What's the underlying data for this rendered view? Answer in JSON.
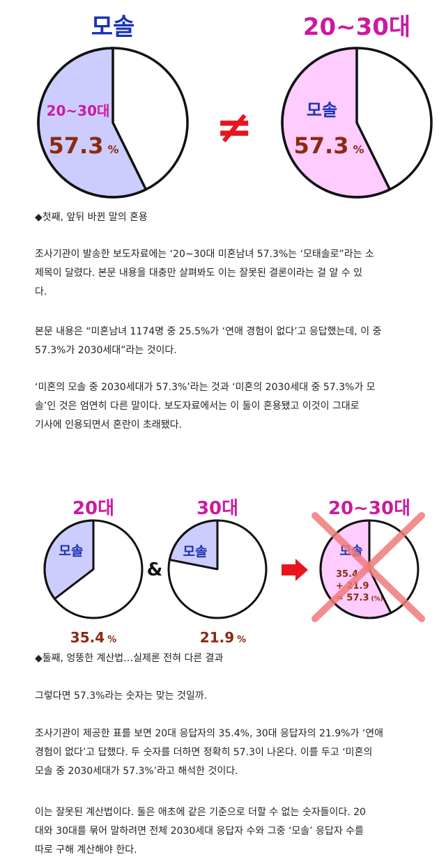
{
  "chart_data": [
    {
      "type": "pie",
      "title": "모솔",
      "slices": [
        {
          "label": "20~30대",
          "value": 57.3,
          "color": "#ccccff"
        },
        {
          "label": "",
          "value": 42.7,
          "color": "#ffffff"
        }
      ],
      "value_label": "57.3",
      "unit": "%"
    },
    {
      "type": "pie",
      "title": "20~30대",
      "slices": [
        {
          "label": "모솔",
          "value": 57.3,
          "color": "#ffccff"
        },
        {
          "label": "",
          "value": 42.7,
          "color": "#ffffff"
        }
      ],
      "value_label": "57.3",
      "unit": "%"
    },
    {
      "type": "pie",
      "title": "20대",
      "slices": [
        {
          "label": "모솔",
          "value": 35.4,
          "color": "#ccccff"
        },
        {
          "label": "",
          "value": 64.6,
          "color": "#ffffff"
        }
      ],
      "value_label": "35.4",
      "unit": "%"
    },
    {
      "type": "pie",
      "title": "30대",
      "slices": [
        {
          "label": "모솔",
          "value": 21.9,
          "color": "#ccccff"
        },
        {
          "label": "",
          "value": 78.1,
          "color": "#ffffff"
        }
      ],
      "value_label": "21.9",
      "unit": "%"
    },
    {
      "type": "pie",
      "title": "20~30대",
      "slices": [
        {
          "label": "모솔",
          "value": 57.3,
          "color": "#ffccff"
        },
        {
          "label": "",
          "value": 42.7,
          "color": "#ffffff"
        }
      ],
      "annotation": [
        "35.4",
        "+ 21.9",
        "= 57.3"
      ],
      "annotation_unit": "(%)",
      "crossed_out": true
    }
  ],
  "symbols": {
    "not_equal": "≠",
    "ampersand": "&"
  },
  "colors": {
    "title_blue": "#1a33b3",
    "title_magenta": "#cc1aa0",
    "value_brown": "#8b2a10",
    "not_equal_red": "#e8141e",
    "arrow_red": "#e8141e",
    "cross_red": "#f07a7a"
  },
  "section1": {
    "caption": "◆첫째, 앞뒤 바뀐 말의 혼용",
    "paragraphs": [
      [
        "조사기관이 발송한 보도자료에는 ‘20~30대 미혼남녀 57.3%는 ‘모태솔로”라는 소",
        "제목이 달렸다. 본문 내용을 대충만 살펴봐도 이는 잘못된 결론이라는 걸 알 수 있",
        "다."
      ],
      [
        "본문 내용은 “미혼남녀 1174명 중 25.5%가 ‘연애 경험이 없다’고 응답했는데, 이 중",
        "57.3%가 2030세대”라는 것이다."
      ],
      [
        "‘미혼의 모솔 중 2030세대가 57.3%’라는 것과 ‘미혼의 2030세대 중 57.3%가 모",
        "솔’인 것은 엄연히 다른 말이다. 보도자료에서는 이 둘이 혼용됐고 이것이 그대로",
        "기사에 인용되면서 혼란이 초래됐다."
      ]
    ]
  },
  "section2": {
    "caption": "◆둘째, 엉뚱한 계산법…실제론 전혀 다른 결과",
    "paragraphs": [
      [
        "그렇다면 57.3%라는 숫자는 맞는 것일까."
      ],
      [
        "조사기관이 제공한 표를 보면 20대 응답자의 35.4%, 30대 응답자의 21.9%가 ‘연애",
        "경험이 없다’고 답했다. 두 숫자를 더하면 정확히 57.3이 나온다. 이를 두고 ‘미혼의",
        "모솔 중 2030세대가 57.3%’라고 해석한 것이다."
      ],
      [
        "이는 잘못된 계산법이다. 둘은 애초에 같은 기준으로 더할 수 없는 숫자들이다. 20",
        "대와 30대를 묶어 말하려면 전체 2030세대 응답자 수와 그중 ‘모솔’ 응답자 수를",
        "따로 구해 계산해야 한다."
      ]
    ]
  }
}
